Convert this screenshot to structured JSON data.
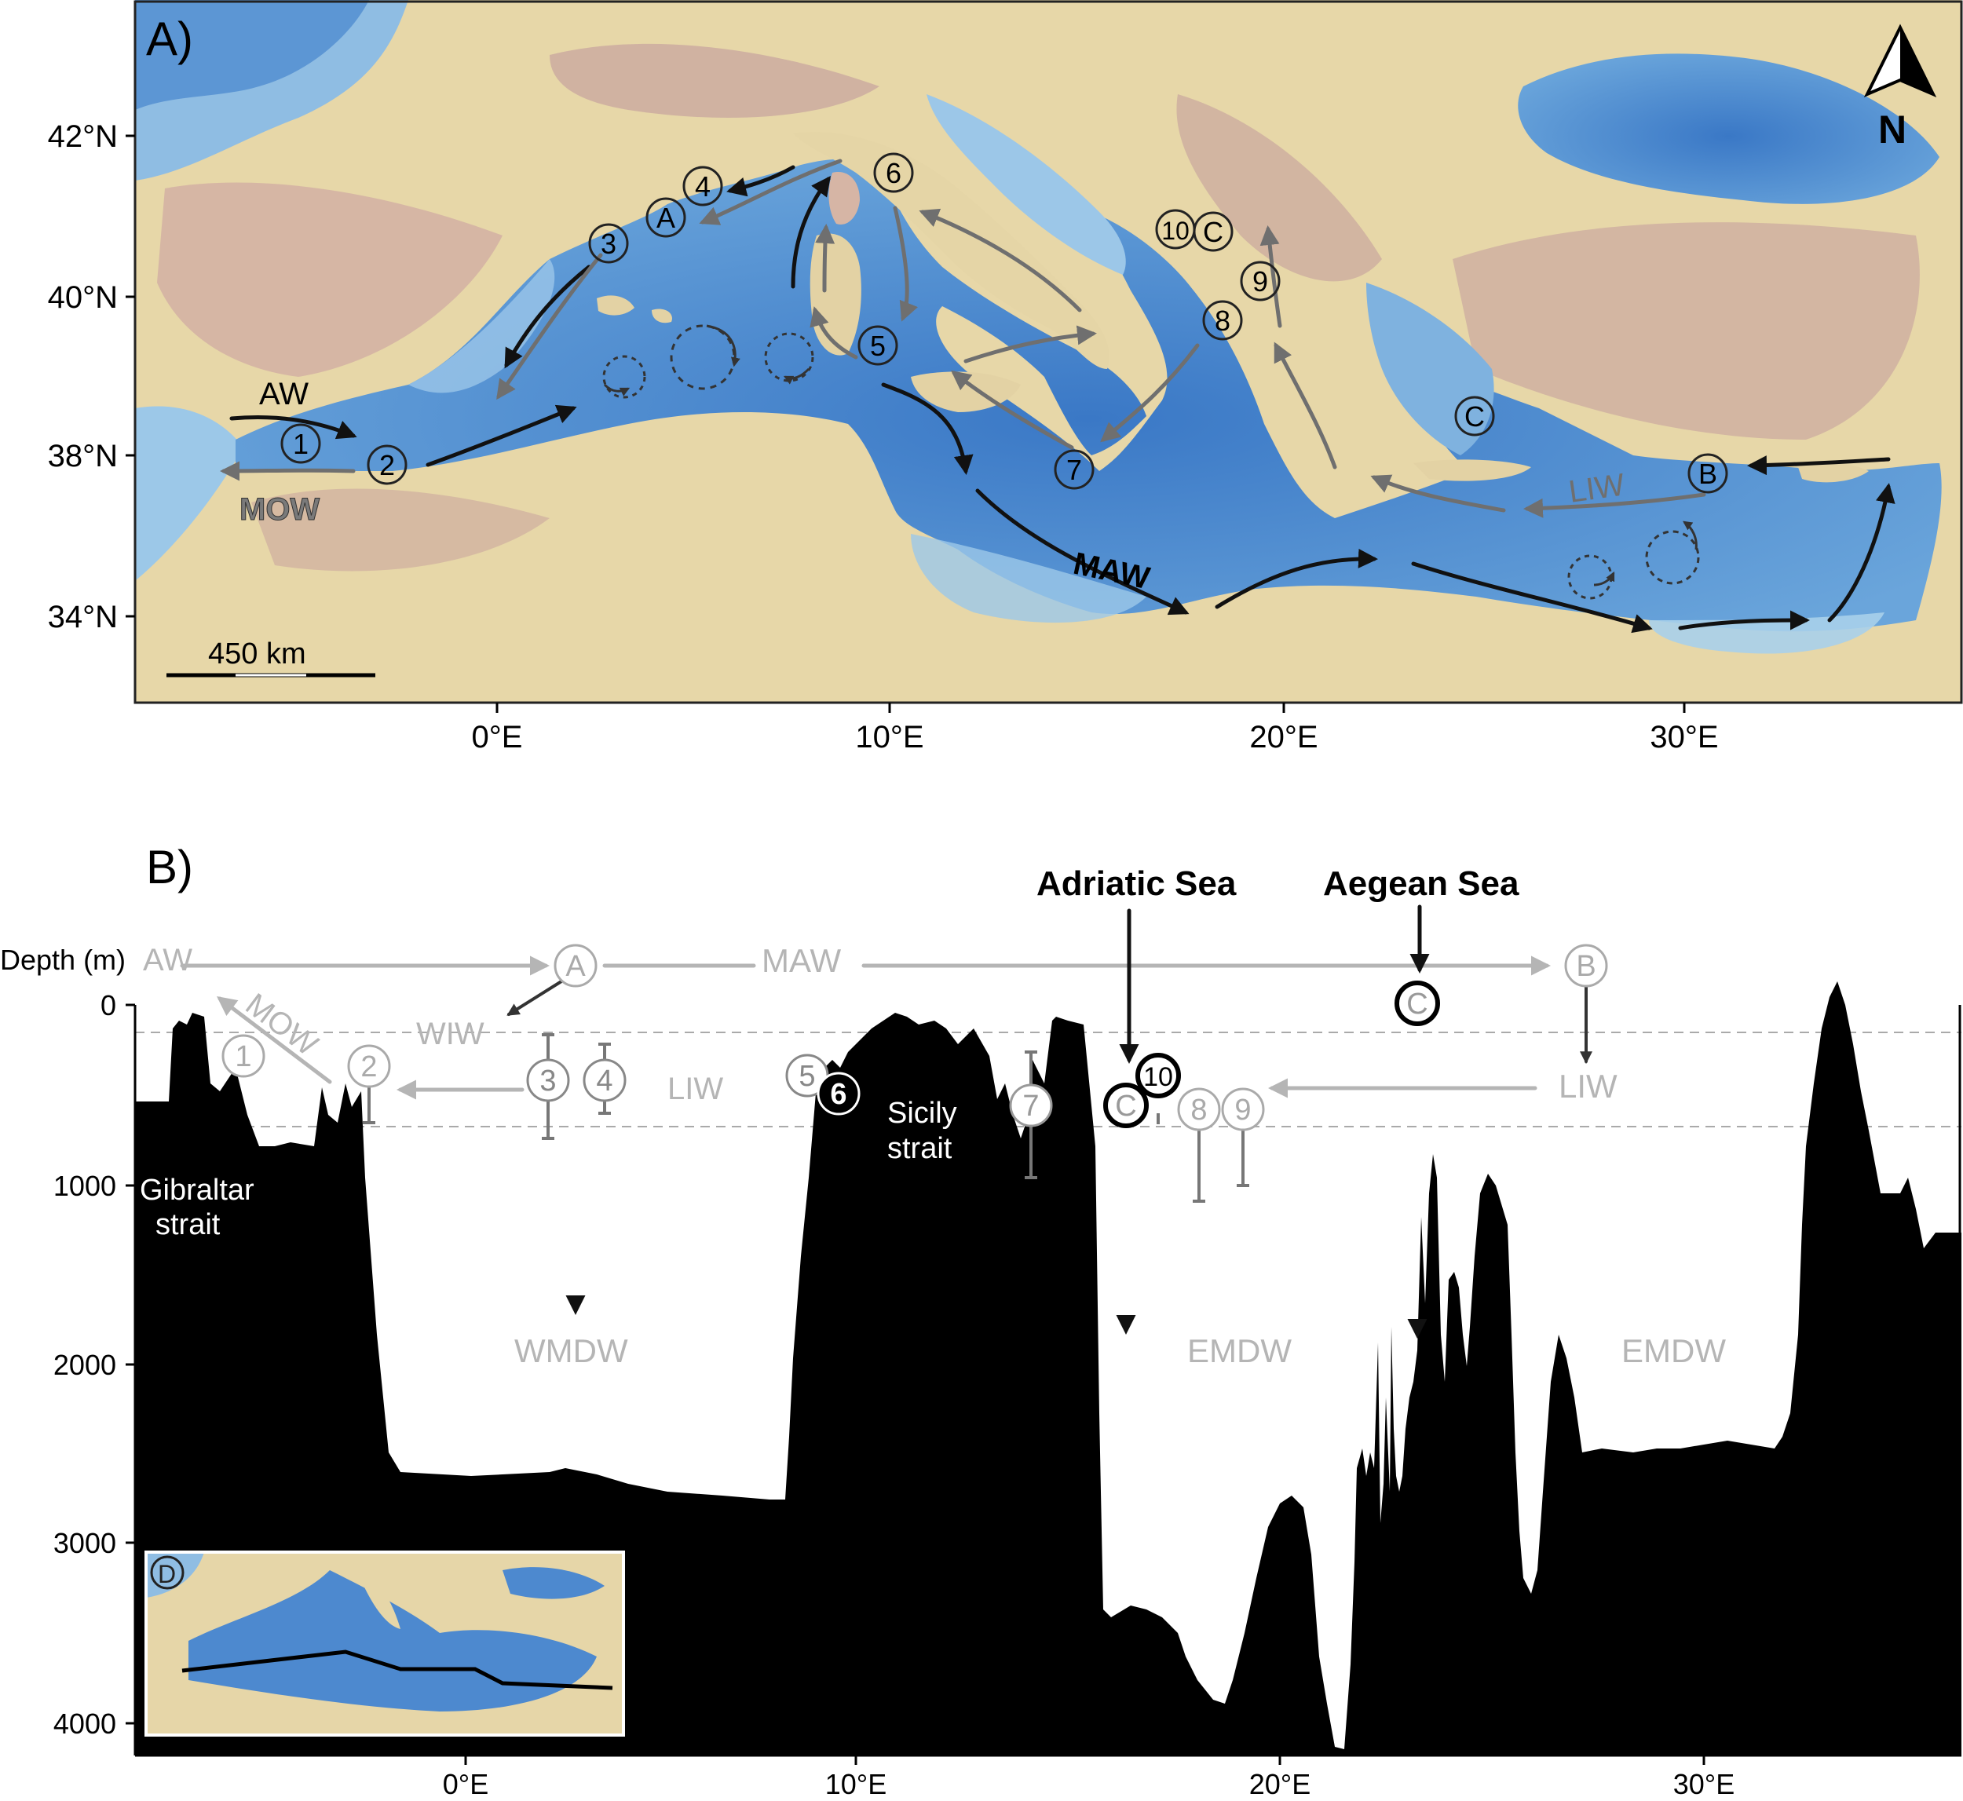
{
  "panel_a": {
    "label": "A)",
    "lat_ticks": [
      "42°N",
      "40°N",
      "38°N",
      "34°N"
    ],
    "lon_ticks": [
      "0°E",
      "10°E",
      "20°E",
      "30°E"
    ],
    "north_label": "N",
    "scale_label": "450 km",
    "currents": {
      "aw": "AW",
      "mow": "MOW",
      "maw": "MAW",
      "liw": "LIW"
    },
    "sites": [
      "1",
      "2",
      "3",
      "4",
      "5",
      "6",
      "7",
      "8",
      "9",
      "10"
    ],
    "areas": [
      "A",
      "B",
      "C",
      "C"
    ]
  },
  "panel_b": {
    "label": "B)",
    "depth_title": "Depth (m)",
    "depth_ticks": [
      "0",
      "1000",
      "2000",
      "3000",
      "4000"
    ],
    "lon_ticks": [
      "0°E",
      "10°E",
      "20°E",
      "30°E"
    ],
    "regions": {
      "adriatic": "Adriatic Sea",
      "aegean": "Aegean Sea"
    },
    "straits": {
      "gibraltar_1": "Gibraltar",
      "gibraltar_2": "strait",
      "sicily_1": "Sicily",
      "sicily_2": "strait"
    },
    "water_masses": {
      "aw": "AW",
      "maw": "MAW",
      "mow": "MOW",
      "wiw": "WIW",
      "liw_west": "LIW",
      "liw_east": "LIW",
      "wmdw": "WMDW",
      "emdw_1": "EMDW",
      "emdw_2": "EMDW"
    },
    "sites": [
      "1",
      "2",
      "3",
      "4",
      "5",
      "6",
      "7",
      "8",
      "9",
      "10"
    ],
    "areas": [
      "A",
      "B",
      "C",
      "C"
    ],
    "inset_label": "D"
  },
  "colors": {
    "sea_deep": "#3d7cc9",
    "sea_shallow": "#a9cfe9",
    "land_low": "#e9dcae",
    "land_high": "#c9a8a0",
    "arrow_black": "#111111",
    "arrow_grey": "#6f6f6f",
    "label_grey": "#b5b5b5",
    "bathymetry": "#000000"
  }
}
